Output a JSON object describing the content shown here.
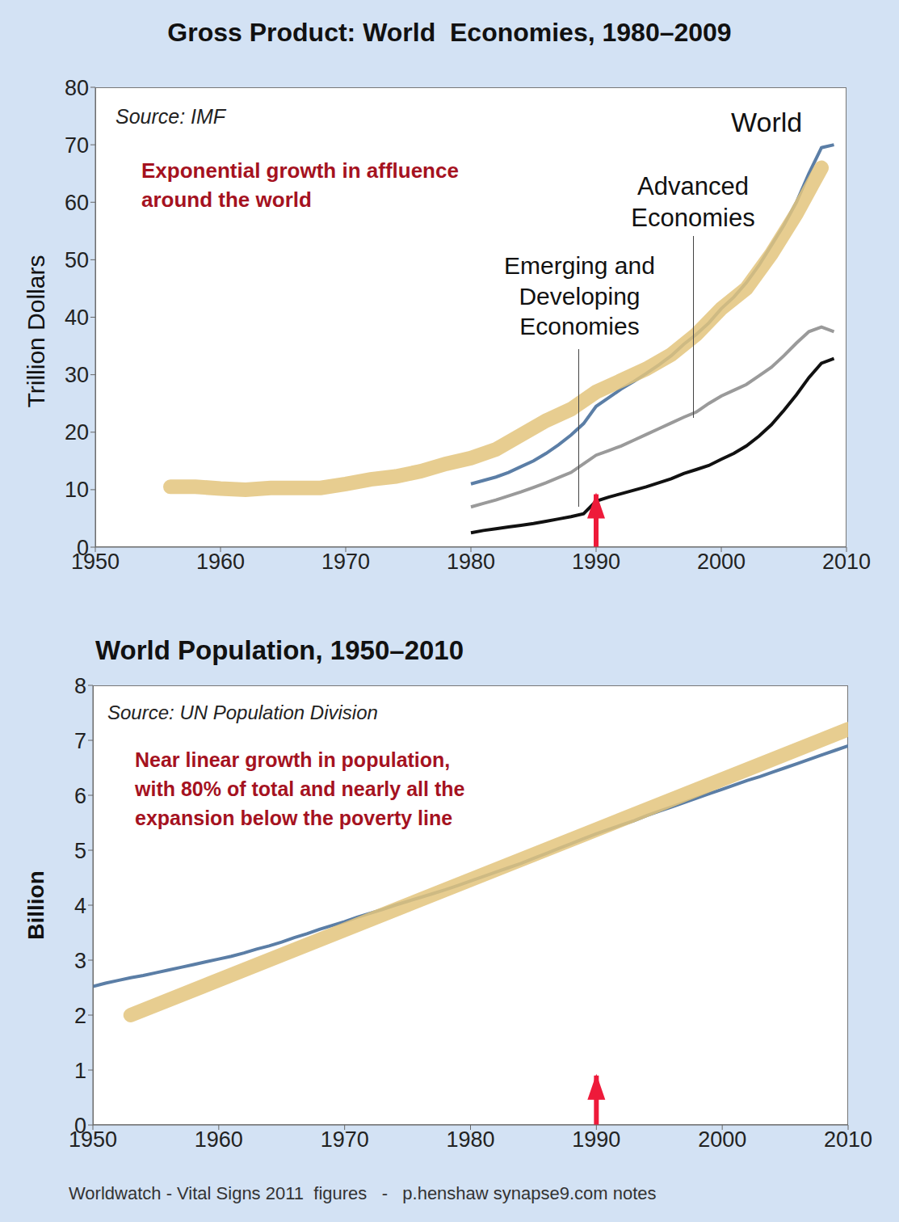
{
  "chart_data": [
    {
      "type": "line",
      "title": "Gross Product: World  Economies, 1980–2009",
      "source": "Source: IMF",
      "ylabel": "Trillion Dollars",
      "annotation": [
        "Exponential growth in affluence",
        "around the world"
      ],
      "xlim": [
        1950,
        2010
      ],
      "xticks": [
        1950,
        1960,
        1970,
        1980,
        1990,
        2000,
        2010
      ],
      "ylim": [
        0,
        80
      ],
      "yticks": [
        0,
        10,
        20,
        30,
        40,
        50,
        60,
        70,
        80
      ],
      "grid": false,
      "series": [
        {
          "name": "World",
          "color": "#5b7ea6",
          "line_style": "solid",
          "x": [
            1980,
            1981,
            1982,
            1983,
            1984,
            1985,
            1986,
            1987,
            1988,
            1989,
            1990,
            1991,
            1992,
            1993,
            1994,
            1995,
            1996,
            1997,
            1998,
            1999,
            2000,
            2001,
            2002,
            2003,
            2004,
            2005,
            2006,
            2007,
            2008,
            2009
          ],
          "values": [
            11,
            11.6,
            12.2,
            13,
            14,
            15,
            16.3,
            17.8,
            19.5,
            21.5,
            24.5,
            26,
            27.5,
            28.8,
            30.2,
            31.7,
            33.3,
            35.3,
            37,
            39,
            41.5,
            43.5,
            46,
            49,
            52.5,
            56,
            60,
            65,
            69.5,
            70
          ]
        },
        {
          "name": "Advanced Economies",
          "color": "#9a9a9a",
          "line_style": "solid",
          "x": [
            1980,
            1981,
            1982,
            1983,
            1984,
            1985,
            1986,
            1987,
            1988,
            1989,
            1990,
            1991,
            1992,
            1993,
            1994,
            1995,
            1996,
            1997,
            1998,
            1999,
            2000,
            2001,
            2002,
            2003,
            2004,
            2005,
            2006,
            2007,
            2008,
            2009
          ],
          "values": [
            7,
            7.6,
            8.2,
            8.9,
            9.6,
            10.4,
            11.2,
            12.1,
            13,
            14.5,
            16,
            16.8,
            17.6,
            18.6,
            19.6,
            20.6,
            21.6,
            22.6,
            23.5,
            25,
            26.3,
            27.3,
            28.3,
            29.8,
            31.3,
            33.3,
            35.5,
            37.5,
            38.3,
            37.5
          ]
        },
        {
          "name": "Emerging and Developing Economies",
          "color": "#111111",
          "line_style": "solid",
          "x": [
            1980,
            1981,
            1982,
            1983,
            1984,
            1985,
            1986,
            1987,
            1988,
            1989,
            1990,
            1991,
            1992,
            1993,
            1994,
            1995,
            1996,
            1997,
            1998,
            1999,
            2000,
            2001,
            2002,
            2003,
            2004,
            2005,
            2006,
            2007,
            2008,
            2009
          ],
          "values": [
            2.5,
            2.9,
            3.2,
            3.5,
            3.8,
            4.1,
            4.5,
            4.9,
            5.3,
            5.8,
            8,
            8.7,
            9.3,
            9.9,
            10.5,
            11.2,
            11.9,
            12.8,
            13.5,
            14.2,
            15.3,
            16.3,
            17.6,
            19.3,
            21.3,
            23.8,
            26.5,
            29.5,
            32,
            32.8
          ]
        },
        {
          "color": "#e3c47c",
          "line_style": "highlight",
          "x": [
            1956,
            1958,
            1960,
            1962,
            1964,
            1966,
            1968,
            1970,
            1972,
            1974,
            1976,
            1978,
            1980,
            1982,
            1984,
            1986,
            1988,
            1990,
            1992,
            1994,
            1996,
            1998,
            2000,
            2002,
            2004,
            2006,
            2008
          ],
          "values": [
            10.5,
            10.5,
            10.2,
            10,
            10.3,
            10.3,
            10.3,
            11,
            11.8,
            12.3,
            13.2,
            14.5,
            15.5,
            17,
            19.5,
            22,
            24,
            27,
            29,
            31,
            33.5,
            37,
            41.5,
            45,
            51,
            58,
            66
          ]
        }
      ],
      "arrow": {
        "x": 1990,
        "y": [
          0,
          9.2
        ],
        "color": "#ee1a3a"
      }
    },
    {
      "type": "line",
      "title": "World Population, 1950–2010",
      "source": "Source: UN Population Division",
      "ylabel": "Billion",
      "annotation": [
        "Near linear growth in population,",
        "with 80% of total and nearly all the",
        "expansion below the poverty line"
      ],
      "xlim": [
        1950,
        2010
      ],
      "xticks": [
        1950,
        1960,
        1970,
        1980,
        1990,
        2000,
        2010
      ],
      "ylim": [
        0,
        8
      ],
      "yticks": [
        0,
        1,
        2,
        3,
        4,
        5,
        6,
        7,
        8
      ],
      "grid": false,
      "series": [
        {
          "color": "#5b7ea6",
          "line_style": "solid",
          "x": [
            1950,
            1951,
            1952,
            1953,
            1954,
            1955,
            1956,
            1957,
            1958,
            1959,
            1960,
            1961,
            1962,
            1963,
            1964,
            1965,
            1966,
            1967,
            1968,
            1969,
            1970,
            1971,
            1972,
            1973,
            1974,
            1975,
            1976,
            1977,
            1978,
            1979,
            1980,
            1981,
            1982,
            1983,
            1984,
            1985,
            1986,
            1987,
            1988,
            1989,
            1990,
            1991,
            1992,
            1993,
            1994,
            1995,
            1996,
            1997,
            1998,
            1999,
            2000,
            2001,
            2002,
            2003,
            2004,
            2005,
            2006,
            2007,
            2008,
            2009,
            2010
          ],
          "values": [
            2.52,
            2.58,
            2.63,
            2.68,
            2.72,
            2.77,
            2.82,
            2.87,
            2.92,
            2.97,
            3.02,
            3.07,
            3.13,
            3.2,
            3.26,
            3.33,
            3.41,
            3.48,
            3.56,
            3.63,
            3.7,
            3.78,
            3.85,
            3.92,
            4,
            4.07,
            4.14,
            4.21,
            4.28,
            4.36,
            4.44,
            4.52,
            4.6,
            4.68,
            4.76,
            4.85,
            4.94,
            5.03,
            5.12,
            5.21,
            5.3,
            5.38,
            5.46,
            5.54,
            5.63,
            5.71,
            5.79,
            5.87,
            5.95,
            6.03,
            6.11,
            6.19,
            6.27,
            6.34,
            6.42,
            6.5,
            6.58,
            6.66,
            6.74,
            6.82,
            6.9
          ]
        },
        {
          "color": "#e3c47c",
          "line_style": "highlight",
          "x": [
            1953,
            2010
          ],
          "values": [
            2.0,
            7.2
          ]
        }
      ],
      "arrow": {
        "x": 1990,
        "y": [
          0,
          0.9
        ],
        "color": "#ee1a3a"
      }
    }
  ],
  "footer": "Worldwatch - Vital Signs 2011  figures   -   p.henshaw synapse9.com notes"
}
